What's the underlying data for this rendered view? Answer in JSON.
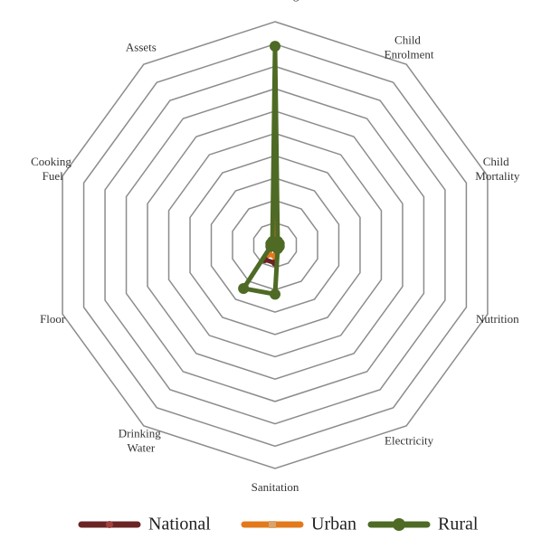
{
  "chart_data": {
    "type": "radar",
    "categories": [
      "Schooling",
      "Child Enrolment",
      "Child Mortality",
      "Nutrition",
      "Electricity",
      "Sanitation",
      "Drinking Water",
      "Floor",
      "Cooking Fuel",
      "Assets"
    ],
    "rlim": [
      0,
      100
    ],
    "rticks": [
      10,
      20,
      30,
      40,
      50,
      60,
      70,
      80,
      90,
      100
    ],
    "grid": true,
    "legend": "bottom",
    "series": [
      {
        "name": "National",
        "color": "#6b2424",
        "values": [
          30,
          1,
          1,
          1,
          1,
          8,
          8,
          1,
          1,
          1
        ]
      },
      {
        "name": "Urban",
        "color": "#e2791c",
        "values": [
          12,
          1,
          1,
          1,
          1,
          5,
          5,
          1,
          1,
          1
        ]
      },
      {
        "name": "Rural",
        "color": "#4e6a25",
        "values": [
          89,
          2,
          2,
          2,
          2,
          22,
          24,
          2,
          2,
          2
        ]
      }
    ]
  }
}
